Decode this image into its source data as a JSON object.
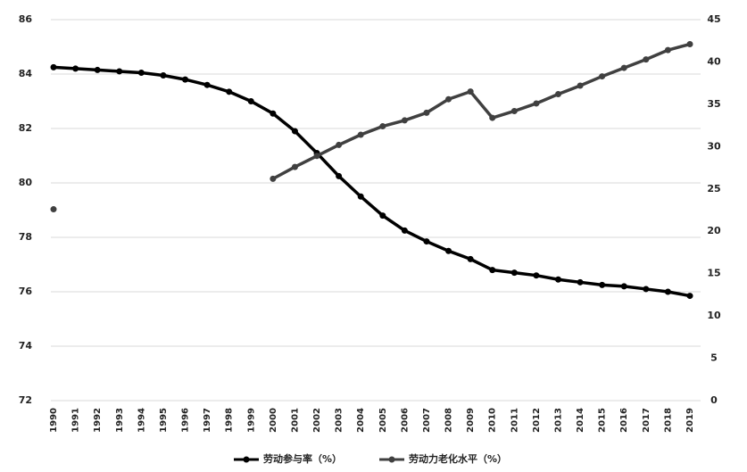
{
  "chart_data": {
    "type": "line",
    "categories": [
      "1990",
      "1991",
      "1992",
      "1993",
      "1994",
      "1995",
      "1996",
      "1997",
      "1998",
      "1999",
      "2000",
      "2001",
      "2002",
      "2003",
      "2004",
      "2005",
      "2006",
      "2007",
      "2008",
      "2009",
      "2010",
      "2011",
      "2012",
      "2013",
      "2014",
      "2015",
      "2016",
      "2017",
      "2018",
      "2019"
    ],
    "series": [
      {
        "name": "劳动参与率（%）",
        "color": "#000000",
        "axis": "y",
        "values": [
          84.25,
          84.2,
          84.15,
          84.1,
          84.05,
          83.95,
          83.8,
          83.6,
          83.35,
          83.0,
          82.55,
          81.9,
          81.1,
          80.25,
          79.5,
          78.8,
          78.25,
          77.85,
          77.5,
          77.2,
          76.8,
          76.7,
          76.6,
          76.45,
          76.35,
          76.25,
          76.2,
          76.1,
          76.0,
          75.85
        ]
      },
      {
        "name": "劳动力老化水平（%）",
        "color": "#404040",
        "axis": "y2",
        "values": [
          22.6,
          null,
          null,
          null,
          null,
          null,
          null,
          null,
          null,
          null,
          26.2,
          27.6,
          28.9,
          30.2,
          31.4,
          32.4,
          33.1,
          34.0,
          35.6,
          36.5,
          33.4,
          34.2,
          35.1,
          36.2,
          37.2,
          38.3,
          39.3,
          40.3,
          41.4,
          42.1
        ]
      }
    ],
    "ylim": [
      72,
      86
    ],
    "yticks": [
      72,
      74,
      76,
      78,
      80,
      82,
      84,
      86
    ],
    "y2lim": [
      0,
      45
    ],
    "y2ticks": [
      0,
      5,
      10,
      15,
      20,
      25,
      30,
      35,
      40,
      45
    ],
    "grid": true,
    "legend": "bottom"
  }
}
